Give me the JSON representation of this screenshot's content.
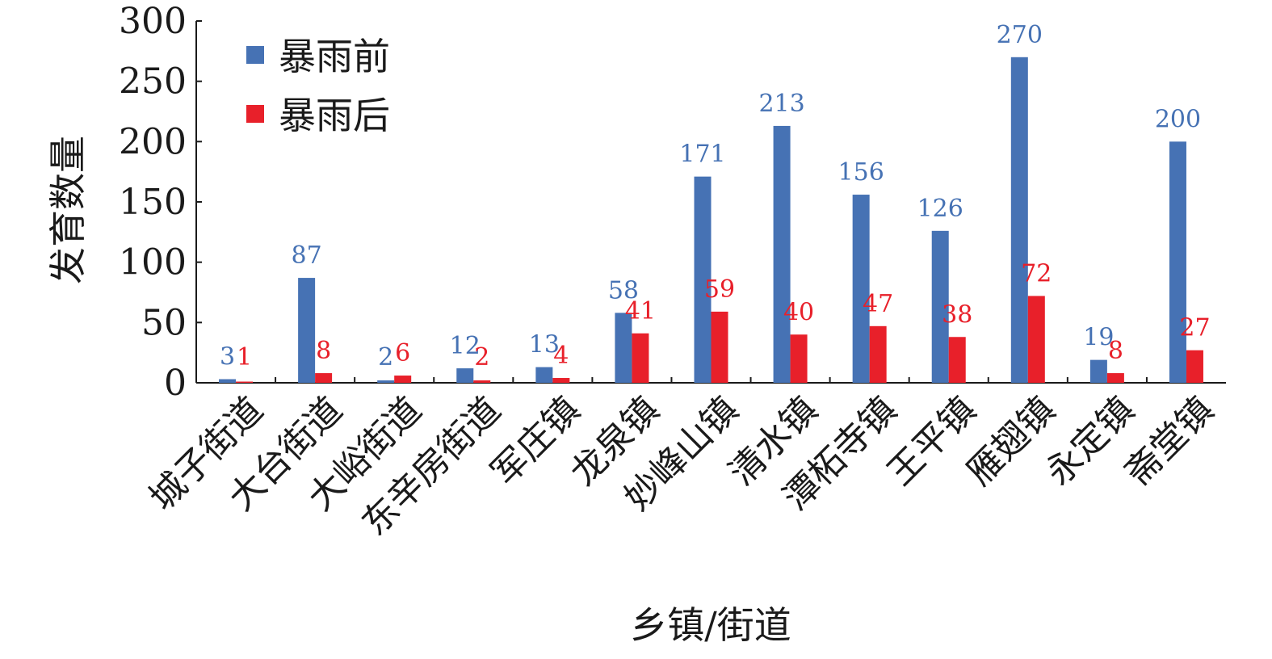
{
  "chart_data": {
    "type": "bar",
    "xlabel": "乡镇/街道",
    "ylabel": "发育数量",
    "ylim": [
      0,
      300
    ],
    "yticks": [
      0,
      50,
      100,
      150,
      200,
      250,
      300
    ],
    "categories": [
      "城子街道",
      "大台街道",
      "大峪街道",
      "东辛房街道",
      "军庄镇",
      "龙泉镇",
      "妙峰山镇",
      "清水镇",
      "潭柘寺镇",
      "王平镇",
      "雁翅镇",
      "永定镇",
      "斋堂镇"
    ],
    "series": [
      {
        "name": "暴雨前",
        "color": "#4672b4",
        "values": [
          3,
          87,
          2,
          12,
          13,
          58,
          171,
          213,
          156,
          126,
          270,
          19,
          200
        ]
      },
      {
        "name": "暴雨后",
        "color": "#e8202a",
        "values": [
          1,
          8,
          6,
          2,
          4,
          41,
          59,
          40,
          47,
          38,
          72,
          8,
          27
        ]
      }
    ],
    "legend_position": "top-left",
    "grid": false
  }
}
